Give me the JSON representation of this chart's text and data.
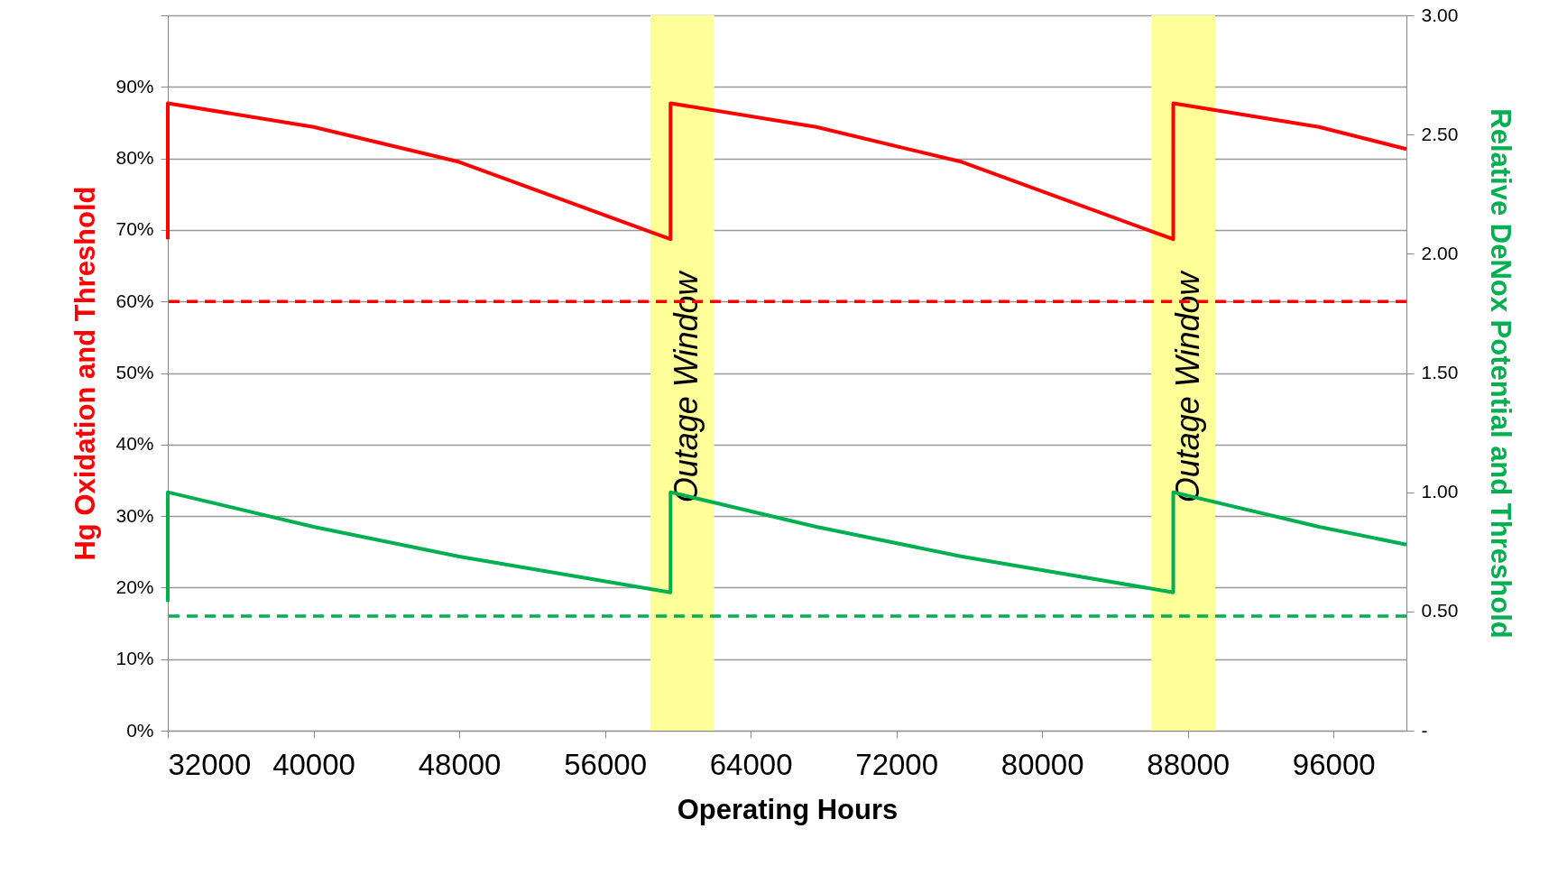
{
  "chart_data": {
    "type": "line",
    "xlabel": "Operating Hours",
    "ylabel": "Hg Oxidation and Threshold",
    "y2label": "Relative DeNox Potential and Threshold",
    "x": [
      32000,
      32000,
      40000,
      48000,
      59600,
      59600,
      67600,
      75600,
      87200,
      87200,
      95200,
      100000
    ],
    "series": [
      {
        "color": "#ff0000",
        "values": [
          68.7,
          87.7,
          84.4,
          79.5,
          68.7,
          87.7,
          84.4,
          79.5,
          68.7,
          87.7,
          84.4,
          81.3
        ]
      },
      {
        "color": "#00b050",
        "axis": "y2",
        "values": [
          0.54,
          1.0,
          0.855,
          0.73,
          0.58,
          1.0,
          0.855,
          0.73,
          0.58,
          1.0,
          0.855,
          0.78
        ]
      }
    ],
    "xlim": [
      32000,
      100000
    ],
    "xticks": [
      32000,
      40000,
      48000,
      56000,
      64000,
      72000,
      80000,
      88000,
      96000
    ],
    "ylim": [
      0,
      100
    ],
    "yticks": [
      {
        "value": 0,
        "label": "0%"
      },
      {
        "value": 10,
        "label": "10%"
      },
      {
        "value": 20,
        "label": "20%"
      },
      {
        "value": 30,
        "label": "30%"
      },
      {
        "value": 40,
        "label": "40%"
      },
      {
        "value": 50,
        "label": "50%"
      },
      {
        "value": 60,
        "label": "60%"
      },
      {
        "value": 70,
        "label": "70%"
      },
      {
        "value": 80,
        "label": "80%"
      },
      {
        "value": 90,
        "label": "90%"
      },
      {
        "value": 100,
        "label": null
      }
    ],
    "y2lim": [
      0,
      3
    ],
    "y2ticks": [
      {
        "value": 0,
        "label": "-"
      },
      {
        "value": 0.5,
        "label": "0.50"
      },
      {
        "value": 1,
        "label": "1.00"
      },
      {
        "value": 1.5,
        "label": "1.50"
      },
      {
        "value": 2,
        "label": "2.00"
      },
      {
        "value": 2.5,
        "label": "2.50"
      },
      {
        "value": 3,
        "label": "3.00"
      }
    ],
    "ref_lines": [
      {
        "axis": "y",
        "value": 60,
        "color": "#ff0000",
        "line_style": "dashed"
      },
      {
        "axis": "y2",
        "value": 0.48,
        "color": "#00b050",
        "line_style": "dashed"
      }
    ],
    "bands": [
      {
        "axis": "x",
        "from": 58500,
        "to": 62000,
        "label": "Outage Window",
        "color": "#ffff99"
      },
      {
        "axis": "x",
        "from": 86000,
        "to": 89500,
        "label": "Outage Window",
        "color": "#ffff99"
      }
    ],
    "grid": "y",
    "line_style": "solid"
  }
}
